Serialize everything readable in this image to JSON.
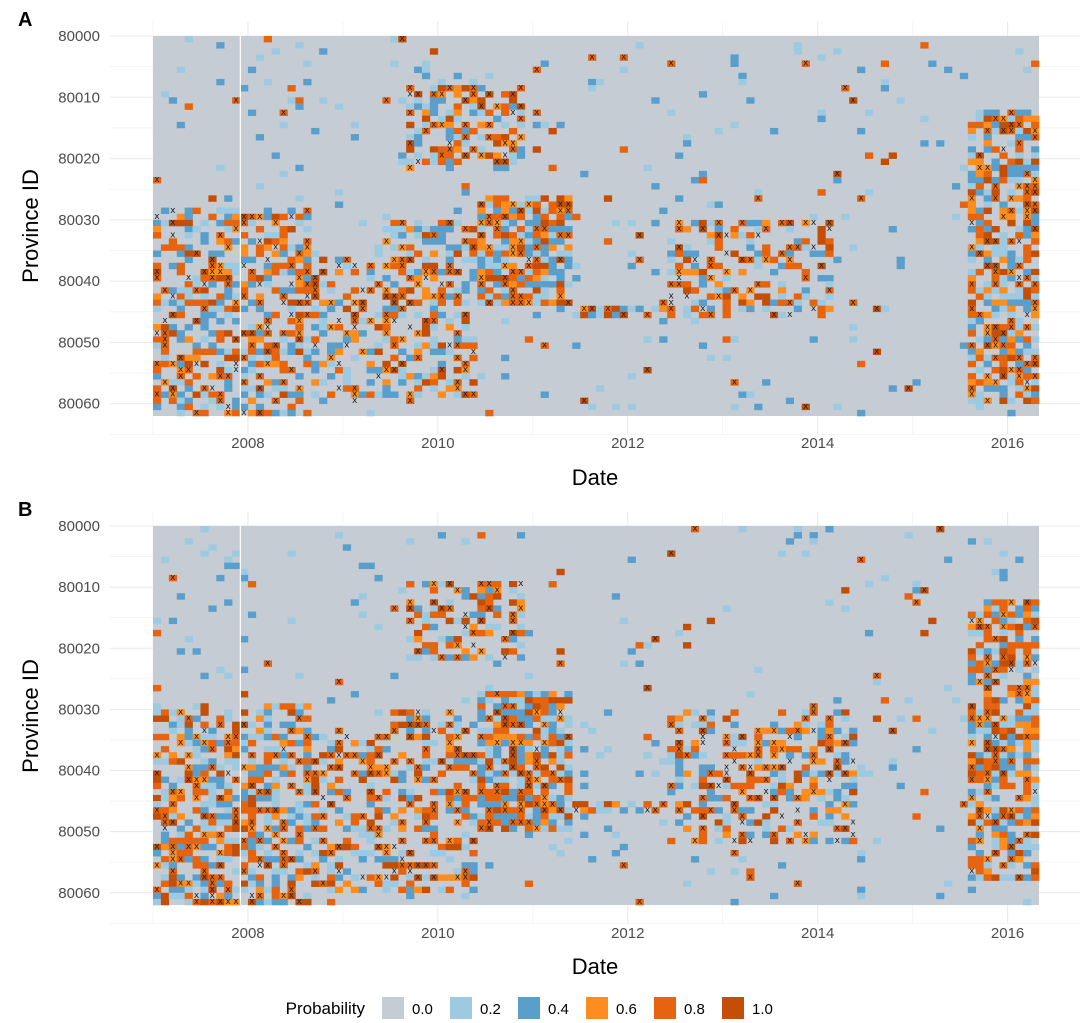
{
  "chart_data": [
    {
      "type": "heatmap",
      "panel": "A",
      "xlabel": "Date",
      "ylabel": "Province ID",
      "xlim": [
        "2007-01-01",
        "2016-05-01"
      ],
      "ylim": [
        80000,
        80062
      ],
      "x_ticks": [
        "2008",
        "2010",
        "2012",
        "2014",
        "2016"
      ],
      "y_ticks": [
        "80000",
        "80010",
        "80020",
        "80030",
        "80040",
        "80050",
        "80060"
      ],
      "regions": [
        {
          "x": [
            "2007-01-01",
            "2008-09-01"
          ],
          "y": [
            80028,
            80062
          ],
          "value": 0.6
        },
        {
          "x": [
            "2008-01-01",
            "2010-06-01"
          ],
          "y": [
            80035,
            80060
          ],
          "value": 0.5
        },
        {
          "x": [
            "2009-09-01",
            "2010-12-01"
          ],
          "y": [
            80008,
            80022
          ],
          "value": 0.6
        },
        {
          "x": [
            "2010-06-01",
            "2011-06-01"
          ],
          "y": [
            80026,
            80044
          ],
          "value": 0.9
        },
        {
          "x": [
            "2009-06-01",
            "2011-06-01"
          ],
          "y": [
            80030,
            80044
          ],
          "value": 0.6
        },
        {
          "x": [
            "2011-06-01",
            "2012-06-01"
          ],
          "y": [
            80044,
            80046
          ],
          "value": 0.8
        },
        {
          "x": [
            "2012-06-01",
            "2014-03-01"
          ],
          "y": [
            80030,
            80046
          ],
          "value": 0.5
        },
        {
          "x": [
            "2015-08-01",
            "2016-05-01"
          ],
          "y": [
            80012,
            80060
          ],
          "value": 0.8
        }
      ],
      "rows": [
        {
          "y": 80016,
          "x": [
            "2007-01-01",
            "2016-05-01"
          ],
          "value": 0.8
        }
      ]
    },
    {
      "type": "heatmap",
      "panel": "B",
      "xlabel": "Date",
      "ylabel": "Province ID",
      "xlim": [
        "2007-01-01",
        "2016-05-01"
      ],
      "ylim": [
        80000,
        80062
      ],
      "x_ticks": [
        "2008",
        "2010",
        "2012",
        "2014",
        "2016"
      ],
      "y_ticks": [
        "80000",
        "80010",
        "80020",
        "80030",
        "80040",
        "80050",
        "80060"
      ],
      "regions": [
        {
          "x": [
            "2007-01-01",
            "2008-09-01"
          ],
          "y": [
            80029,
            80062
          ],
          "value": 0.7
        },
        {
          "x": [
            "2008-01-01",
            "2010-06-01"
          ],
          "y": [
            80034,
            80060
          ],
          "value": 0.55
        },
        {
          "x": [
            "2009-09-01",
            "2010-12-01"
          ],
          "y": [
            80009,
            80022
          ],
          "value": 0.55
        },
        {
          "x": [
            "2010-06-01",
            "2011-06-01"
          ],
          "y": [
            80027,
            80050
          ],
          "value": 0.95
        },
        {
          "x": [
            "2009-06-01",
            "2011-06-01"
          ],
          "y": [
            80030,
            80046
          ],
          "value": 0.6
        },
        {
          "x": [
            "2011-06-01",
            "2012-06-01"
          ],
          "y": [
            80045,
            80047
          ],
          "value": 0.8
        },
        {
          "x": [
            "2012-06-01",
            "2014-06-01"
          ],
          "y": [
            80030,
            80052
          ],
          "value": 0.5
        },
        {
          "x": [
            "2015-08-01",
            "2016-05-01"
          ],
          "y": [
            80012,
            80058
          ],
          "value": 0.8
        }
      ],
      "rows": [
        {
          "y": 80016,
          "x": [
            "2007-01-01",
            "2016-05-01"
          ],
          "value": 0.8
        }
      ]
    }
  ],
  "panels": [
    {
      "label": "A",
      "xlabel": "Date",
      "ylabel": "Province ID"
    },
    {
      "label": "B",
      "xlabel": "Date",
      "ylabel": "Province ID"
    }
  ],
  "legend": {
    "title": "Probability",
    "items": [
      {
        "label": "0.0",
        "color": "#c6ccd4"
      },
      {
        "label": "0.2",
        "color": "#9ecae1"
      },
      {
        "label": "0.4",
        "color": "#5a9fcb"
      },
      {
        "label": "0.6",
        "color": "#fd8d1e"
      },
      {
        "label": "0.8",
        "color": "#e6640f"
      },
      {
        "label": "1.0",
        "color": "#c44e06"
      }
    ]
  },
  "colors": {
    "background_panel": "#c6ccd4",
    "marker": "#222222"
  }
}
